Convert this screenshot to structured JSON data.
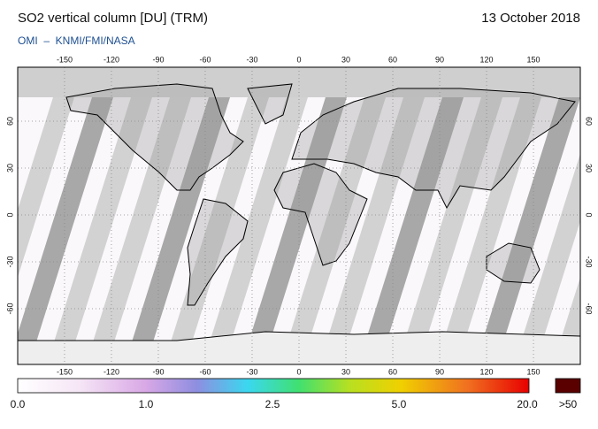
{
  "header": {
    "title": "SO2 vertical column [DU] (TRM)",
    "date": "13 October 2018",
    "credit": "OMI  –  KNMI/FMI/NASA"
  },
  "map": {
    "longitude_ticks": [
      -150,
      -120,
      -90,
      -60,
      -30,
      0,
      30,
      60,
      90,
      120,
      150
    ],
    "latitude_ticks": [
      -60,
      -30,
      0,
      30,
      60
    ]
  },
  "colorbar": {
    "labels": [
      "0.0",
      "1.0",
      "2.5",
      "5.0",
      "20.0"
    ],
    "overflow_label": ">50"
  }
}
